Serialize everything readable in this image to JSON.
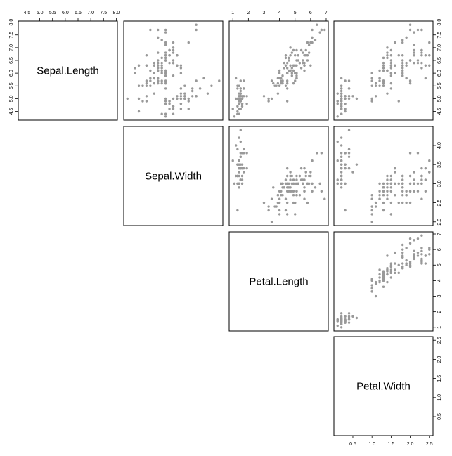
{
  "chart_data": {
    "type": "scatter",
    "layout": "upper-triangle scatterplot matrix",
    "point_color": "#999999",
    "grid": false,
    "variables": [
      {
        "name": "Sepal.Length",
        "range": [
          4.3,
          7.9
        ],
        "ticks": [
          4.5,
          5.0,
          5.5,
          6.0,
          6.5,
          7.0,
          7.5,
          8.0
        ],
        "tick_labels": [
          "4.5",
          "5.0",
          "5.5",
          "6.0",
          "6.5",
          "7.0",
          "7.5",
          "8.0"
        ]
      },
      {
        "name": "Sepal.Width",
        "range": [
          2.0,
          4.4
        ],
        "ticks": [
          2.0,
          2.5,
          3.0,
          3.5,
          4.0
        ],
        "tick_labels": [
          "2.0",
          "2.5",
          "3.0",
          "3.5",
          "4.0"
        ]
      },
      {
        "name": "Petal.Length",
        "range": [
          1.0,
          6.9
        ],
        "ticks": [
          1,
          2,
          3,
          4,
          5,
          6,
          7
        ],
        "tick_labels": [
          "1",
          "2",
          "3",
          "4",
          "5",
          "6",
          "7"
        ]
      },
      {
        "name": "Petal.Width",
        "range": [
          0.1,
          2.5
        ],
        "ticks": [
          0.5,
          1.0,
          1.5,
          2.0,
          2.5
        ],
        "tick_labels": [
          "0.5",
          "1.0",
          "1.5",
          "2.0",
          "2.5"
        ]
      }
    ],
    "columns": [
      "Sepal.Length",
      "Sepal.Width",
      "Petal.Length",
      "Petal.Width"
    ],
    "observations": [
      [
        5.1,
        3.5,
        1.4,
        0.2
      ],
      [
        4.9,
        3.0,
        1.4,
        0.2
      ],
      [
        4.7,
        3.2,
        1.3,
        0.2
      ],
      [
        4.6,
        3.1,
        1.5,
        0.2
      ],
      [
        5.0,
        3.6,
        1.4,
        0.2
      ],
      [
        5.4,
        3.9,
        1.7,
        0.4
      ],
      [
        4.6,
        3.4,
        1.4,
        0.3
      ],
      [
        5.0,
        3.4,
        1.5,
        0.2
      ],
      [
        4.4,
        2.9,
        1.4,
        0.2
      ],
      [
        4.9,
        3.1,
        1.5,
        0.1
      ],
      [
        5.4,
        3.7,
        1.5,
        0.2
      ],
      [
        4.8,
        3.4,
        1.6,
        0.2
      ],
      [
        4.8,
        3.0,
        1.4,
        0.1
      ],
      [
        4.3,
        3.0,
        1.1,
        0.1
      ],
      [
        5.8,
        4.0,
        1.2,
        0.2
      ],
      [
        5.7,
        4.4,
        1.5,
        0.4
      ],
      [
        5.4,
        3.9,
        1.3,
        0.4
      ],
      [
        5.1,
        3.5,
        1.4,
        0.3
      ],
      [
        5.7,
        3.8,
        1.7,
        0.3
      ],
      [
        5.1,
        3.8,
        1.5,
        0.3
      ],
      [
        5.4,
        3.4,
        1.7,
        0.2
      ],
      [
        5.1,
        3.7,
        1.5,
        0.4
      ],
      [
        4.6,
        3.6,
        1.0,
        0.2
      ],
      [
        5.1,
        3.3,
        1.7,
        0.5
      ],
      [
        4.8,
        3.4,
        1.9,
        0.2
      ],
      [
        5.0,
        3.0,
        1.6,
        0.2
      ],
      [
        5.0,
        3.4,
        1.6,
        0.4
      ],
      [
        5.2,
        3.5,
        1.5,
        0.2
      ],
      [
        5.2,
        3.4,
        1.4,
        0.2
      ],
      [
        4.7,
        3.2,
        1.6,
        0.2
      ],
      [
        4.8,
        3.1,
        1.6,
        0.2
      ],
      [
        5.4,
        3.4,
        1.5,
        0.4
      ],
      [
        5.2,
        4.1,
        1.5,
        0.1
      ],
      [
        5.5,
        4.2,
        1.4,
        0.2
      ],
      [
        4.9,
        3.1,
        1.5,
        0.2
      ],
      [
        5.0,
        3.2,
        1.2,
        0.2
      ],
      [
        5.5,
        3.5,
        1.3,
        0.2
      ],
      [
        4.9,
        3.6,
        1.4,
        0.1
      ],
      [
        4.4,
        3.0,
        1.3,
        0.2
      ],
      [
        5.1,
        3.4,
        1.5,
        0.2
      ],
      [
        5.0,
        3.5,
        1.3,
        0.3
      ],
      [
        4.5,
        2.3,
        1.3,
        0.3
      ],
      [
        4.4,
        3.2,
        1.3,
        0.2
      ],
      [
        5.0,
        3.5,
        1.6,
        0.6
      ],
      [
        5.1,
        3.8,
        1.9,
        0.4
      ],
      [
        4.8,
        3.0,
        1.4,
        0.3
      ],
      [
        5.1,
        3.8,
        1.6,
        0.2
      ],
      [
        4.6,
        3.2,
        1.4,
        0.2
      ],
      [
        5.3,
        3.7,
        1.5,
        0.2
      ],
      [
        5.0,
        3.3,
        1.4,
        0.2
      ],
      [
        7.0,
        3.2,
        4.7,
        1.4
      ],
      [
        6.4,
        3.2,
        4.5,
        1.5
      ],
      [
        6.9,
        3.1,
        4.9,
        1.5
      ],
      [
        5.5,
        2.3,
        4.0,
        1.3
      ],
      [
        6.5,
        2.8,
        4.6,
        1.5
      ],
      [
        5.7,
        2.8,
        4.5,
        1.3
      ],
      [
        6.3,
        3.3,
        4.7,
        1.6
      ],
      [
        4.9,
        2.4,
        3.3,
        1.0
      ],
      [
        6.6,
        2.9,
        4.6,
        1.3
      ],
      [
        5.2,
        2.7,
        3.9,
        1.4
      ],
      [
        5.0,
        2.0,
        3.5,
        1.0
      ],
      [
        5.9,
        3.0,
        4.2,
        1.5
      ],
      [
        6.0,
        2.2,
        4.0,
        1.0
      ],
      [
        6.1,
        2.9,
        4.7,
        1.4
      ],
      [
        5.6,
        2.9,
        3.6,
        1.3
      ],
      [
        6.7,
        3.1,
        4.4,
        1.4
      ],
      [
        5.6,
        3.0,
        4.5,
        1.5
      ],
      [
        5.8,
        2.7,
        4.1,
        1.0
      ],
      [
        6.2,
        2.2,
        4.5,
        1.5
      ],
      [
        5.6,
        2.5,
        3.9,
        1.1
      ],
      [
        5.9,
        3.2,
        4.8,
        1.8
      ],
      [
        6.1,
        2.8,
        4.0,
        1.3
      ],
      [
        6.3,
        2.5,
        4.9,
        1.5
      ],
      [
        6.1,
        2.8,
        4.7,
        1.2
      ],
      [
        6.4,
        2.9,
        4.3,
        1.3
      ],
      [
        6.6,
        3.0,
        4.4,
        1.4
      ],
      [
        6.8,
        2.8,
        4.8,
        1.4
      ],
      [
        6.7,
        3.0,
        5.0,
        1.7
      ],
      [
        6.0,
        2.9,
        4.5,
        1.5
      ],
      [
        5.7,
        2.6,
        3.5,
        1.0
      ],
      [
        5.5,
        2.4,
        3.8,
        1.1
      ],
      [
        5.5,
        2.4,
        3.7,
        1.0
      ],
      [
        5.8,
        2.7,
        3.9,
        1.2
      ],
      [
        6.0,
        2.7,
        5.1,
        1.6
      ],
      [
        5.4,
        3.0,
        4.5,
        1.5
      ],
      [
        6.0,
        3.4,
        4.5,
        1.6
      ],
      [
        6.7,
        3.1,
        4.7,
        1.5
      ],
      [
        6.3,
        2.3,
        4.4,
        1.3
      ],
      [
        5.6,
        3.0,
        4.1,
        1.3
      ],
      [
        5.5,
        2.5,
        4.0,
        1.3
      ],
      [
        5.5,
        2.6,
        4.4,
        1.2
      ],
      [
        6.1,
        3.0,
        4.6,
        1.4
      ],
      [
        5.8,
        2.6,
        4.0,
        1.2
      ],
      [
        5.0,
        2.3,
        3.3,
        1.0
      ],
      [
        5.6,
        2.7,
        4.2,
        1.3
      ],
      [
        5.7,
        3.0,
        4.2,
        1.2
      ],
      [
        5.7,
        2.9,
        4.2,
        1.3
      ],
      [
        6.2,
        2.9,
        4.3,
        1.3
      ],
      [
        5.1,
        2.5,
        3.0,
        1.1
      ],
      [
        5.7,
        2.8,
        4.1,
        1.3
      ],
      [
        6.3,
        3.3,
        6.0,
        2.5
      ],
      [
        5.8,
        2.7,
        5.1,
        1.9
      ],
      [
        7.1,
        3.0,
        5.9,
        2.1
      ],
      [
        6.3,
        2.9,
        5.6,
        1.8
      ],
      [
        6.5,
        3.0,
        5.8,
        2.2
      ],
      [
        7.6,
        3.0,
        6.6,
        2.1
      ],
      [
        4.9,
        2.5,
        4.5,
        1.7
      ],
      [
        7.3,
        2.9,
        6.3,
        1.8
      ],
      [
        6.7,
        2.5,
        5.8,
        1.8
      ],
      [
        7.2,
        3.6,
        6.1,
        2.5
      ],
      [
        6.5,
        3.2,
        5.1,
        2.0
      ],
      [
        6.4,
        2.7,
        5.3,
        1.9
      ],
      [
        6.8,
        3.0,
        5.5,
        2.1
      ],
      [
        5.7,
        2.5,
        5.0,
        2.0
      ],
      [
        5.8,
        2.8,
        5.1,
        2.4
      ],
      [
        6.4,
        3.2,
        5.3,
        2.3
      ],
      [
        6.5,
        3.0,
        5.5,
        1.8
      ],
      [
        7.7,
        3.8,
        6.7,
        2.2
      ],
      [
        7.7,
        2.6,
        6.9,
        2.3
      ],
      [
        6.0,
        2.2,
        5.0,
        1.5
      ],
      [
        6.9,
        3.2,
        5.7,
        2.3
      ],
      [
        5.6,
        2.8,
        4.9,
        2.0
      ],
      [
        7.7,
        2.8,
        6.7,
        2.0
      ],
      [
        6.3,
        2.7,
        4.9,
        1.8
      ],
      [
        6.7,
        3.3,
        5.7,
        2.1
      ],
      [
        7.2,
        3.2,
        6.0,
        1.8
      ],
      [
        6.2,
        2.8,
        4.8,
        1.8
      ],
      [
        6.1,
        3.0,
        4.9,
        1.8
      ],
      [
        6.4,
        2.8,
        5.6,
        2.1
      ],
      [
        7.2,
        3.0,
        5.8,
        1.6
      ],
      [
        7.4,
        2.8,
        6.1,
        1.9
      ],
      [
        7.9,
        3.8,
        6.4,
        2.0
      ],
      [
        6.4,
        2.8,
        5.6,
        2.2
      ],
      [
        6.3,
        2.8,
        5.1,
        1.5
      ],
      [
        6.1,
        2.6,
        5.6,
        1.4
      ],
      [
        7.7,
        3.0,
        6.1,
        2.3
      ],
      [
        6.3,
        3.4,
        5.6,
        2.4
      ],
      [
        6.4,
        3.1,
        5.5,
        1.8
      ],
      [
        6.0,
        3.0,
        4.8,
        1.8
      ],
      [
        6.9,
        3.1,
        5.4,
        2.1
      ],
      [
        6.7,
        3.1,
        5.6,
        2.4
      ],
      [
        6.9,
        3.1,
        5.1,
        2.3
      ],
      [
        5.8,
        2.7,
        5.1,
        1.9
      ],
      [
        6.8,
        3.2,
        5.9,
        2.3
      ],
      [
        6.7,
        3.3,
        5.7,
        2.5
      ],
      [
        6.7,
        3.0,
        5.2,
        2.3
      ],
      [
        6.3,
        2.5,
        5.0,
        1.9
      ],
      [
        6.5,
        3.0,
        5.2,
        2.0
      ],
      [
        6.2,
        3.4,
        5.4,
        2.3
      ],
      [
        5.9,
        3.0,
        5.1,
        1.8
      ]
    ]
  }
}
